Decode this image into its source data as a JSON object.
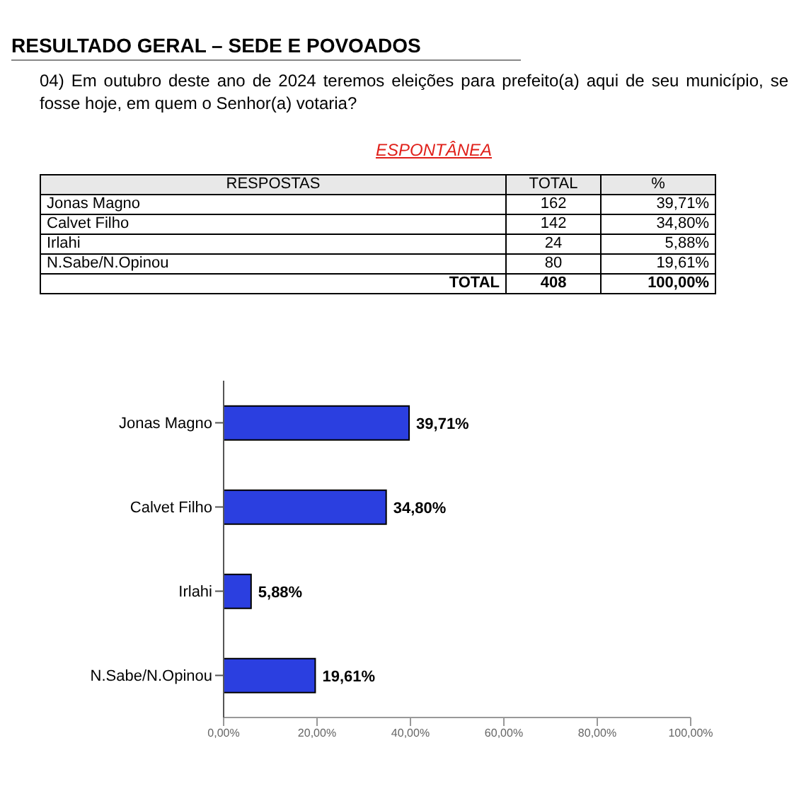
{
  "chart_data": [
    {
      "type": "other",
      "title": "RESULTADO GERAL – SEDE E POVOADOS",
      "subtitle": "04) Em outubro deste ano de 2024 teremos eleições para prefeito(a) aqui de seu município, se fosse hoje, em quem o Senhor(a) votaria?",
      "xlabel": "RESPOSTAS",
      "categories": [
        "Jonas Magno",
        "Calvet Filho",
        "Irlahi",
        "N.Sabe/N.Opinou"
      ],
      "series": [
        {
          "name": "TOTAL",
          "values": [
            162,
            142,
            24,
            80
          ]
        },
        {
          "name": "%",
          "values": [
            39.71,
            34.8,
            5.88,
            19.61
          ],
          "value_labels": [
            "39,71%",
            "34,80%",
            "5,88%",
            "19,61%"
          ]
        }
      ],
      "data_labels": true,
      "annotations": [
        "ESPONTÂNEA",
        "TOTAL",
        "408",
        "100,00%"
      ]
    },
    {
      "type": "bar",
      "orientation": "horizontal",
      "categories": [
        "Jonas Magno",
        "Calvet Filho",
        "Irlahi",
        "N.Sabe/N.Opinou"
      ],
      "values": [
        39.71,
        34.8,
        5.88,
        19.61
      ],
      "value_labels": [
        "39,71%",
        "34,80%",
        "5,88%",
        "19,61%"
      ],
      "color": "#2b3fe0",
      "xlim": [
        0,
        100
      ],
      "xticks": [
        {
          "value": 0,
          "label": "0,00%"
        },
        {
          "value": 20,
          "label": "20,00%"
        },
        {
          "value": 40,
          "label": "40,00%"
        },
        {
          "value": 60,
          "label": "60,00%"
        },
        {
          "value": 80,
          "label": "80,00%"
        },
        {
          "value": 100,
          "label": "100,00%"
        }
      ]
    }
  ]
}
